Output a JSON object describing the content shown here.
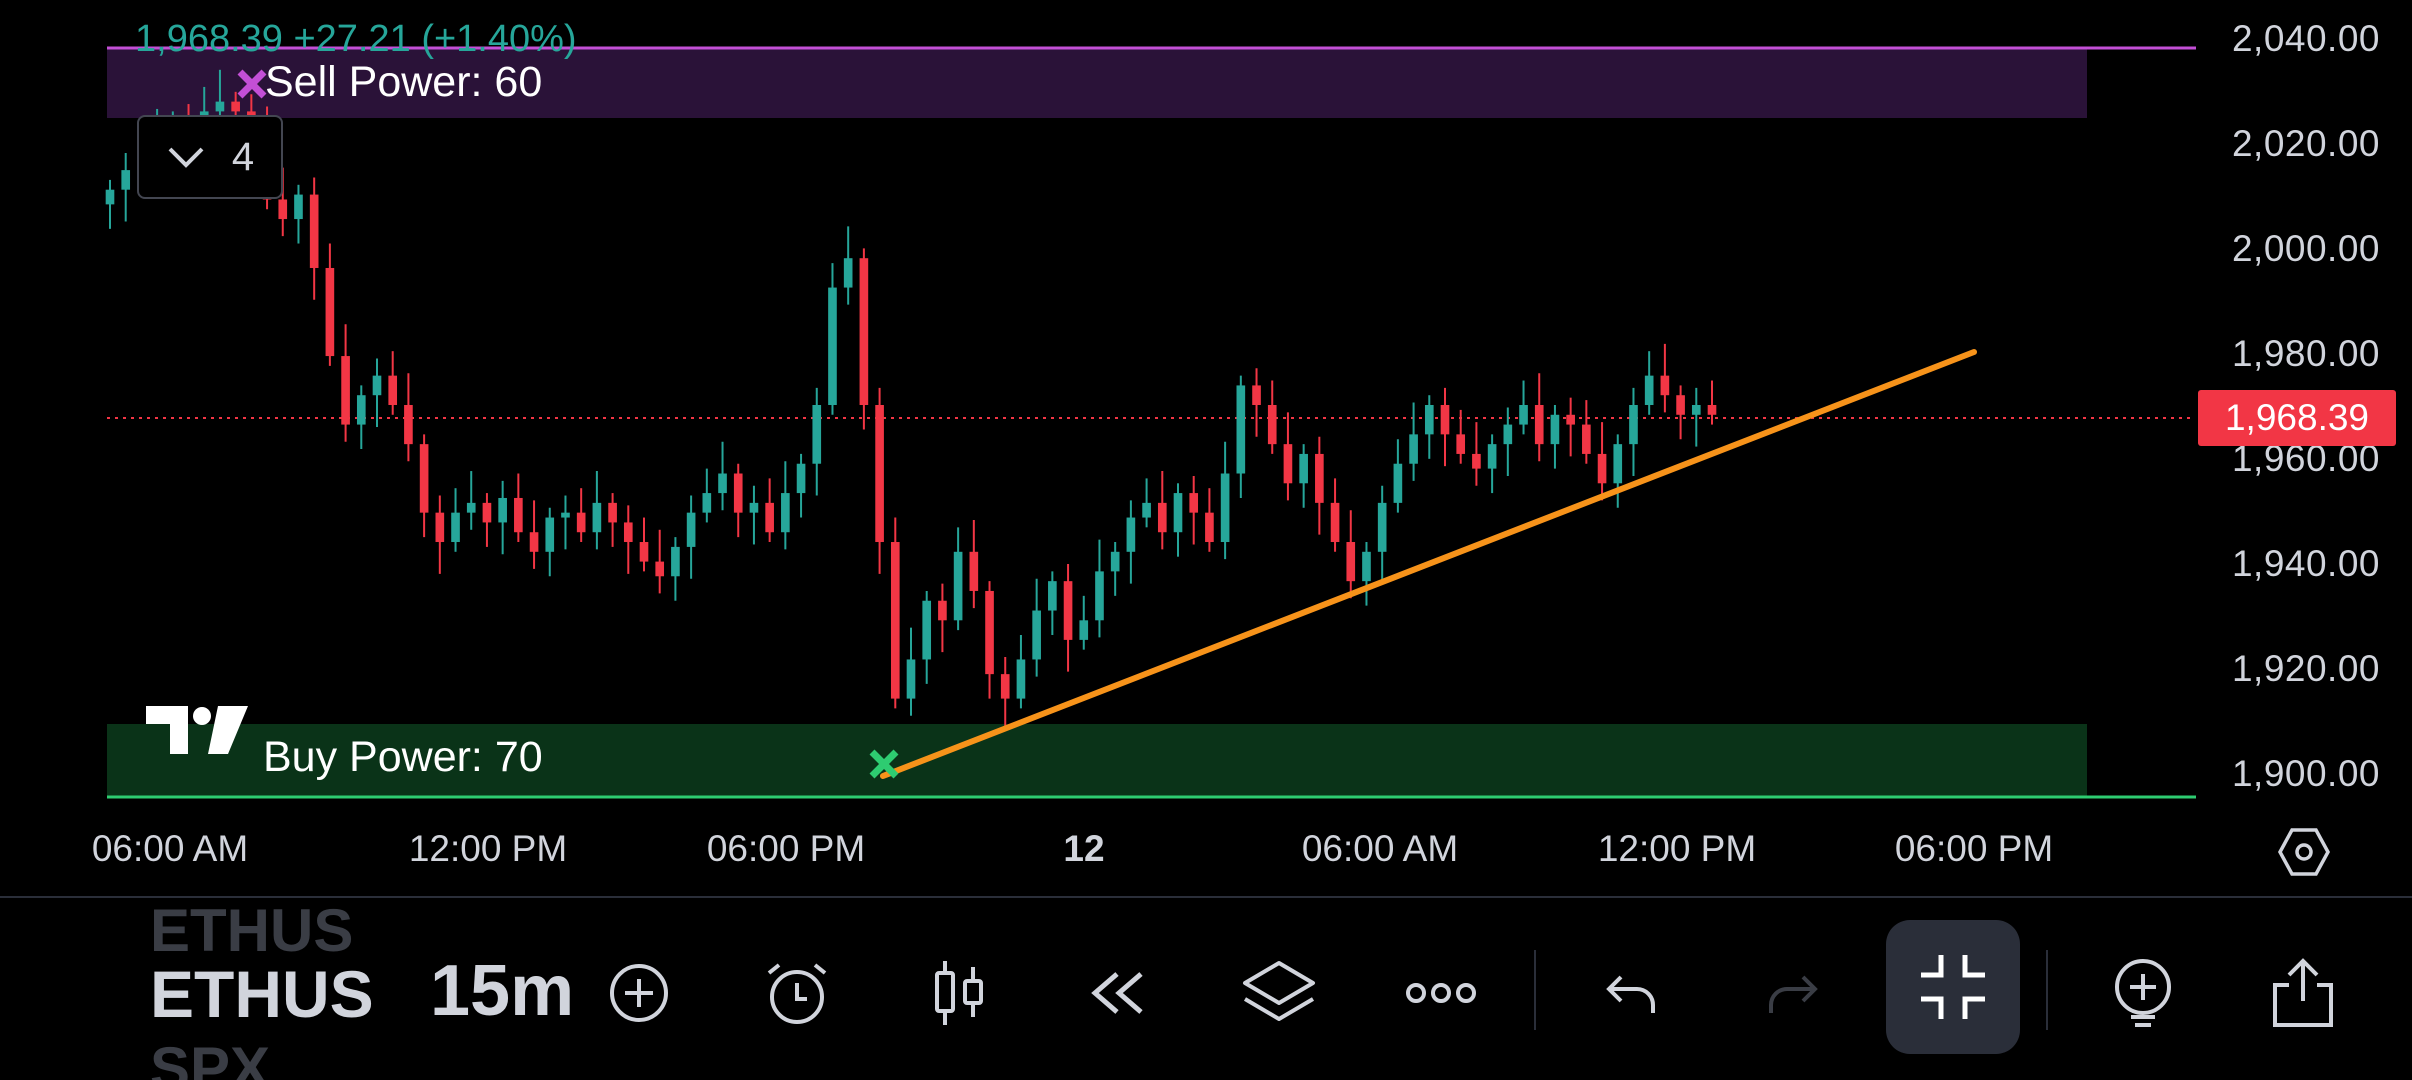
{
  "symbol": {
    "ohlc_text": "1,968.39  +27.21 (+1.40%)",
    "last_price_tag": "1,968.39"
  },
  "indicators": {
    "sell_power_label": "Sell Power: 60",
    "buy_power_label": "Buy Power: 70",
    "collapse_count": "4"
  },
  "price_axis": [
    "2,040.00",
    "2,020.00",
    "2,000.00",
    "1,980.00",
    "1,960.00",
    "1,940.00",
    "1,920.00",
    "1,900.00"
  ],
  "time_axis": [
    "06:00 AM",
    "12:00 PM",
    "06:00 PM",
    "12",
    "06:00 AM",
    "12:00 PM",
    "06:00 PM"
  ],
  "toolbar": {
    "ticker_prev": "ETHUS",
    "ticker_current": "ETHUS",
    "ticker_next": "SPX",
    "interval": "15m"
  },
  "icons": {
    "add_symbol": "plus-circle-icon",
    "alert": "alarm-clock-icon",
    "chart_type": "candlestick-icon",
    "replay": "rewind-icon",
    "layers": "layers-icon",
    "more": "more-dots-icon",
    "undo": "undo-icon",
    "redo": "redo-icon",
    "fullscreen": "exit-fullscreen-icon",
    "add_indicator": "add-indicator-icon",
    "share": "share-icon",
    "settings": "settings-hexagon-icon"
  },
  "colors": {
    "up": "#26a69a",
    "down": "#f23645",
    "trendline": "#f7931a",
    "sell_zone": "#2a1238",
    "buy_zone": "#0a3318",
    "sell_line": "#c34fd6",
    "buy_line": "#2ecc71",
    "background": "#000000"
  },
  "chart_data": {
    "type": "candlestick",
    "symbol": "ETHUS",
    "interval": "15m",
    "ylim": [
      1895,
      2045
    ],
    "last_price": 1968.39,
    "close_series": [
      2014,
      2018,
      2022,
      2024,
      2028,
      2026,
      2030,
      2032,
      2030,
      2026,
      2012,
      2008,
      2013,
      1998,
      1980,
      1966,
      1972,
      1976,
      1970,
      1962,
      1948,
      1942,
      1948,
      1950,
      1946,
      1951,
      1944,
      1940,
      1947,
      1948,
      1944,
      1950,
      1946,
      1942,
      1938,
      1935,
      1941,
      1948,
      1952,
      1956,
      1948,
      1950,
      1944,
      1952,
      1958,
      1970,
      1994,
      2000,
      1970,
      1942,
      1910,
      1918,
      1930,
      1926,
      1940,
      1932,
      1915,
      1910,
      1918,
      1928,
      1934,
      1922,
      1926,
      1936,
      1940,
      1947,
      1950,
      1944,
      1952,
      1948,
      1942,
      1956,
      1974,
      1970,
      1962,
      1954,
      1960,
      1950,
      1942,
      1934,
      1940,
      1950,
      1958,
      1964,
      1970,
      1964,
      1960,
      1957,
      1962,
      1966,
      1970,
      1962,
      1968,
      1966,
      1960,
      1954,
      1962,
      1970,
      1976,
      1972,
      1968,
      1970,
      1968
    ],
    "trendline": {
      "from": {
        "time": "18:30",
        "price": 1901
      },
      "to": {
        "time": "15:00",
        "price": 1980
      }
    },
    "sell_zone": {
      "from": 2024,
      "to": 2038,
      "label": "Sell Power: 60"
    },
    "buy_zone": {
      "from": 1895,
      "to": 1909,
      "label": "Buy Power: 70"
    },
    "y_ticks": [
      "2,040.00",
      "2,020.00",
      "2,000.00",
      "1,980.00",
      "1,960.00",
      "1,940.00",
      "1,920.00",
      "1,900.00"
    ],
    "x_ticks": [
      "06:00 AM",
      "12:00 PM",
      "06:00 PM",
      "12",
      "06:00 AM",
      "12:00 PM",
      "06:00 PM"
    ]
  }
}
